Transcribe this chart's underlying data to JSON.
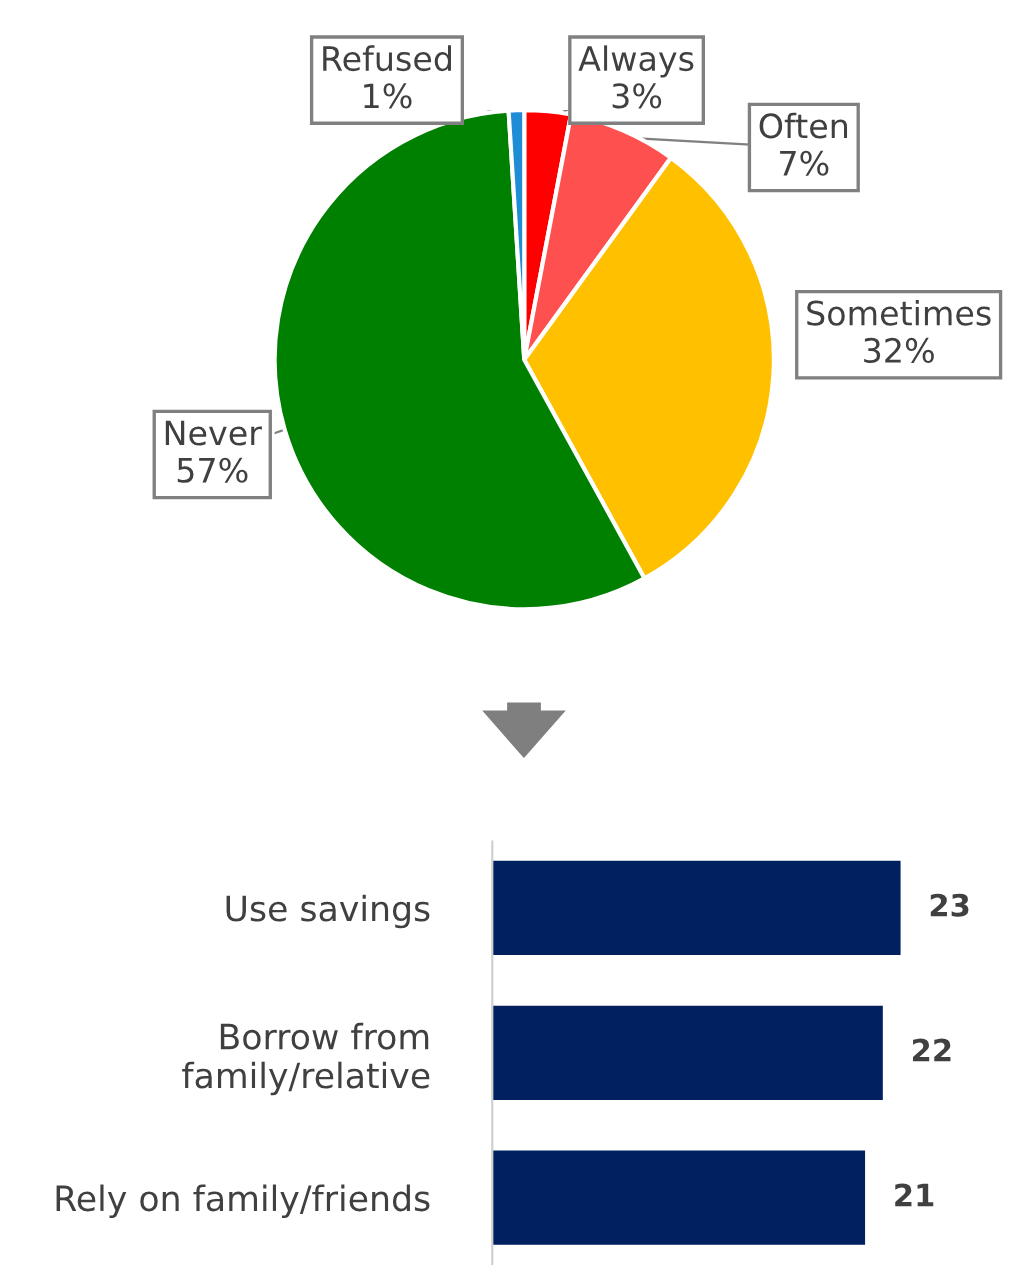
{
  "chart_data": [
    {
      "type": "pie",
      "categories": [
        "Always",
        "Often",
        "Sometimes",
        "Never",
        "Refused"
      ],
      "values": [
        3,
        7,
        32,
        57,
        1
      ],
      "value_labels": [
        "3%",
        "7%",
        "32%",
        "57%",
        "1%"
      ],
      "colors": [
        "#ff0000",
        "#ff5050",
        "#ffc000",
        "#008000",
        "#1f8dd6"
      ]
    },
    {
      "type": "bar",
      "orientation": "horizontal",
      "categories": [
        "Use savings",
        "Borrow from\nfamily/relative",
        "Rely on family/friends"
      ],
      "values": [
        23,
        22,
        21
      ],
      "color": "#002060",
      "tick_labels": "y",
      "data_labels": true
    }
  ]
}
